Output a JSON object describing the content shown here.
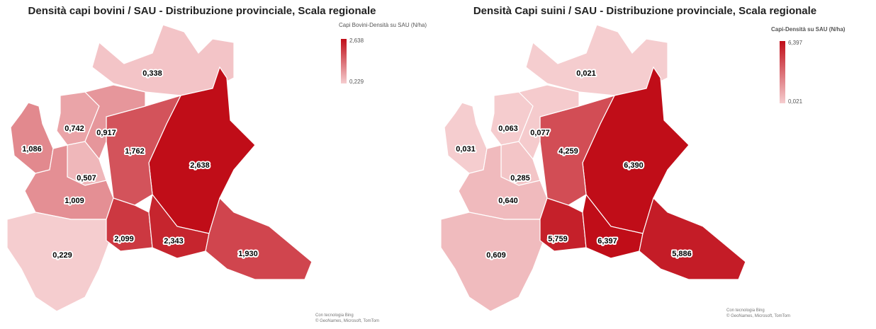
{
  "maps": [
    {
      "title": "Densità capi bovini / SAU - Distribuzione provinciale, Scala regionale",
      "legend": {
        "title": "Capi Bovini-Densità su SAU (N/ha)",
        "max": {
          "value": 2.638,
          "label": "2,638"
        },
        "min": {
          "value": 0.229,
          "label": "0,229"
        },
        "color_min": "#f5cdcf",
        "color_max": "#c00d18"
      },
      "regions": [
        {
          "value": 0.338,
          "label": "0,338"
        },
        {
          "value": 2.638,
          "label": "2,638"
        },
        {
          "value": 1.762,
          "label": "1,762"
        },
        {
          "value": 1.086,
          "label": "1,086"
        },
        {
          "value": 0.742,
          "label": "0,742"
        },
        {
          "value": 0.917,
          "label": "0,917"
        },
        {
          "value": 0.507,
          "label": "0,507"
        },
        {
          "value": 1.009,
          "label": "1,009"
        },
        {
          "value": 0.229,
          "label": "0,229"
        },
        {
          "value": 2.099,
          "label": "2,099"
        },
        {
          "value": 2.343,
          "label": "2,343"
        },
        {
          "value": 1.93,
          "label": "1,930"
        }
      ],
      "credits": [
        "Con tecnologia Bing",
        "© GeoNames, Microsoft, TomTom"
      ]
    },
    {
      "title": "Densità Capi suini / SAU - Distribuzione provinciale, Scala regionale",
      "legend": {
        "title": "Capi-Densità su SAU (N/ha)",
        "max": {
          "value": 6.397,
          "label": "6,397"
        },
        "min": {
          "value": 0.021,
          "label": "0,021"
        },
        "color_min": "#f5cdcf",
        "color_max": "#c00d18"
      },
      "regions": [
        {
          "value": 0.021,
          "label": "0,021"
        },
        {
          "value": 6.39,
          "label": "6,390"
        },
        {
          "value": 4.259,
          "label": "4,259"
        },
        {
          "value": 0.031,
          "label": "0,031"
        },
        {
          "value": 0.063,
          "label": "0,063"
        },
        {
          "value": 0.077,
          "label": "0,077"
        },
        {
          "value": 0.285,
          "label": "0,285"
        },
        {
          "value": 0.64,
          "label": "0,640"
        },
        {
          "value": 0.609,
          "label": "0,609"
        },
        {
          "value": 5.759,
          "label": "5,759"
        },
        {
          "value": 6.397,
          "label": "6,397"
        },
        {
          "value": 5.886,
          "label": "5,886"
        }
      ],
      "credits": [
        "Con tecnologia Bing",
        "© GeoNames, Microsoft, TomTom"
      ]
    }
  ]
}
